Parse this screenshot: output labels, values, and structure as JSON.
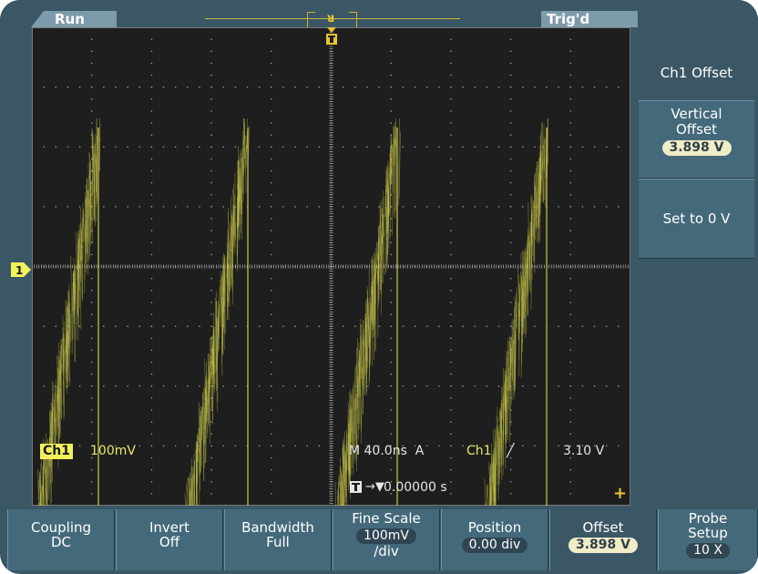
{
  "status": {
    "acquisition": "Run",
    "trigger": "Trig'd"
  },
  "screen": {
    "ch1_label": "Ch1",
    "ch1_scale": "100mV",
    "timebase": "M 40.0ns",
    "trigger_mode": "A",
    "trigger_source": "Ch1",
    "trigger_level": "3.10 V",
    "delay": "0.00000 s",
    "ground_marker": "1",
    "trigger_marker_top": "T",
    "trace_color": "#c8c84a"
  },
  "side_menu": {
    "title_prefix": "Ch1",
    "title_suffix": "Offset",
    "btn1": {
      "line1": "Vertical",
      "line2": "Offset",
      "value": "3.898 V"
    },
    "btn2": {
      "label": "Set to 0 V"
    }
  },
  "bottom_menu": {
    "coupling": {
      "line1": "Coupling",
      "line2": "DC"
    },
    "invert": {
      "line1": "Invert",
      "line2": "Off"
    },
    "bandwidth": {
      "line1": "Bandwidth",
      "line2": "Full"
    },
    "fine_scale": {
      "line1": "Fine Scale",
      "value": "100mV",
      "line3": "/div"
    },
    "position": {
      "line1": "Position",
      "value": "0.00 div"
    },
    "offset": {
      "line1": "Offset",
      "value": "3.898 V"
    },
    "probe": {
      "line1": "Probe",
      "line2": "Setup",
      "value": "10 X"
    }
  }
}
